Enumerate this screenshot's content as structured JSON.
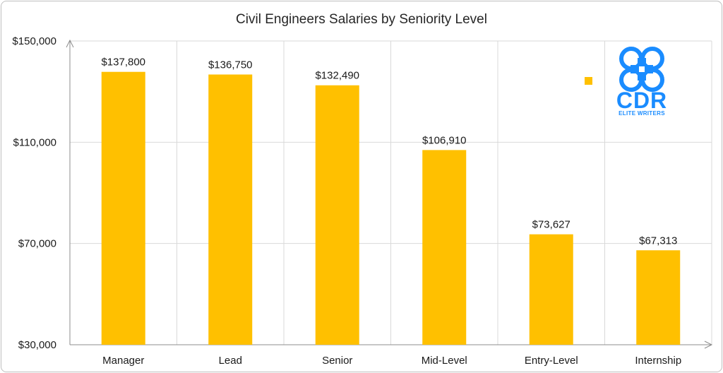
{
  "chart_data": {
    "type": "bar",
    "title": "Civil Engineers Salaries by Seniority Level",
    "categories": [
      "Manager",
      "Lead",
      "Senior",
      "Mid-Level",
      "Entry-Level",
      "Internship"
    ],
    "values": [
      137800,
      136750,
      132490,
      106910,
      73627,
      67313
    ],
    "data_labels": [
      "$137,800",
      "$136,750",
      "$132,490",
      "$106,910",
      "$73,627",
      "$67,313"
    ],
    "ylim": [
      30000,
      150000
    ],
    "yticks": [
      30000,
      70000,
      110000,
      150000
    ],
    "ytick_labels": [
      "$30,000",
      "$70,000",
      "$110,000",
      "$150,000"
    ],
    "xlabel": "",
    "ylabel": "",
    "grid": true,
    "legend": "top-right",
    "bar_color": "#FFC000",
    "grid_color": "#d9d9d9",
    "axis_color": "#8c8c8c"
  },
  "logo": {
    "icon": "cdr-quatrefoil-logo",
    "wordmark": "CDR",
    "tagline": "ELITE WRITERS",
    "color": "#1A8CFF"
  }
}
